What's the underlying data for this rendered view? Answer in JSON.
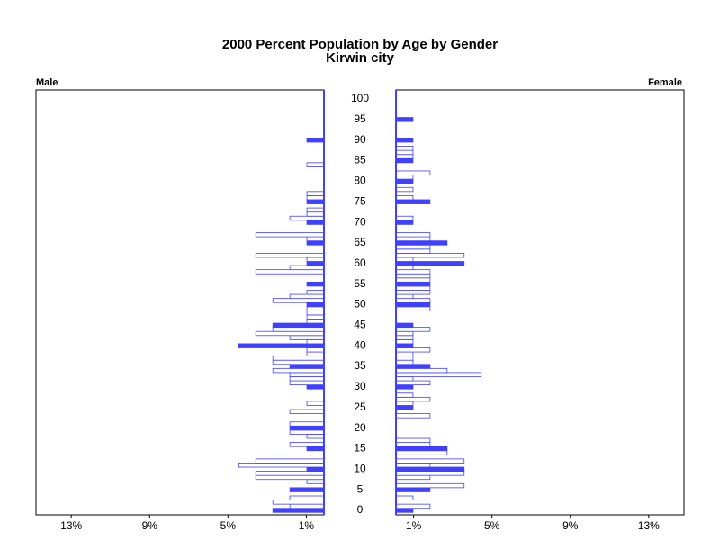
{
  "chart_data": {
    "type": "pyramid",
    "title": "2000 Percent Population by Age by Gender",
    "subtitle": "Kirwin city",
    "ages": [
      0,
      1,
      2,
      3,
      4,
      5,
      6,
      7,
      8,
      9,
      10,
      11,
      12,
      13,
      14,
      15,
      16,
      17,
      18,
      19,
      20,
      21,
      22,
      23,
      24,
      25,
      26,
      27,
      28,
      29,
      30,
      31,
      32,
      33,
      34,
      35,
      36,
      37,
      38,
      39,
      40,
      41,
      42,
      43,
      44,
      45,
      46,
      47,
      48,
      49,
      50,
      51,
      52,
      53,
      54,
      55,
      56,
      57,
      58,
      59,
      60,
      61,
      62,
      63,
      64,
      65,
      66,
      67,
      68,
      69,
      70,
      71,
      72,
      73,
      74,
      75,
      76,
      77,
      78,
      79,
      80,
      81,
      82,
      83,
      84,
      85,
      86,
      87,
      88,
      89,
      90,
      91,
      92,
      93,
      94,
      95,
      96,
      97,
      98,
      99,
      100
    ],
    "ylim": [
      0,
      100
    ],
    "yticks": [
      0,
      5,
      10,
      15,
      20,
      25,
      30,
      35,
      40,
      45,
      50,
      55,
      60,
      65,
      70,
      75,
      80,
      85,
      90,
      95,
      100
    ],
    "xlim": [
      0,
      14.7
    ],
    "xticks": [
      {
        "value": 0.9,
        "label": "1%"
      },
      {
        "value": 4.9,
        "label": "5%"
      },
      {
        "value": 8.9,
        "label": "9%"
      },
      {
        "value": 12.9,
        "label": "13%"
      }
    ],
    "series": [
      {
        "name": "Male",
        "color": "#4040ff",
        "side": "left",
        "values": [
          2.61,
          1.74,
          2.61,
          1.74,
          0,
          1.74,
          0,
          0.87,
          3.48,
          3.48,
          0.87,
          4.35,
          3.48,
          0,
          0,
          0.87,
          1.74,
          0,
          0.87,
          1.74,
          1.74,
          1.74,
          0,
          0,
          1.74,
          0,
          0.87,
          0,
          0,
          0,
          0.87,
          1.74,
          1.74,
          1.74,
          2.61,
          1.74,
          2.61,
          2.61,
          0.87,
          0.87,
          4.35,
          0.87,
          1.74,
          3.48,
          2.61,
          2.61,
          0.87,
          0.87,
          0.87,
          0.87,
          0.87,
          2.61,
          1.74,
          0.87,
          0,
          0.87,
          0,
          0,
          3.48,
          1.74,
          0.87,
          0.87,
          3.48,
          0,
          0,
          0.87,
          0.87,
          3.48,
          0,
          0,
          0.87,
          1.74,
          0.87,
          0.87,
          0,
          0.87,
          0.87,
          0.87,
          0,
          0,
          0,
          0,
          0,
          0,
          0.87,
          0,
          0,
          0,
          0,
          0,
          0.87,
          0,
          0,
          0,
          0,
          0,
          0,
          0,
          0,
          0,
          0
        ]
      },
      {
        "name": "Female",
        "color": "#4040ff",
        "side": "right",
        "values": [
          0.87,
          1.74,
          0,
          0.87,
          0,
          1.74,
          3.48,
          0,
          1.74,
          3.48,
          3.48,
          1.74,
          3.48,
          0,
          2.61,
          2.61,
          1.74,
          1.74,
          0,
          0,
          0,
          0,
          0,
          1.74,
          0,
          0.87,
          0.87,
          1.74,
          0.87,
          0,
          0.87,
          1.74,
          0.87,
          4.35,
          2.61,
          1.74,
          0.87,
          0.87,
          0.87,
          1.74,
          0.87,
          0.87,
          0.87,
          0.87,
          1.74,
          0.87,
          0,
          0,
          0,
          1.74,
          1.74,
          1.74,
          0.87,
          1.74,
          1.74,
          1.74,
          1.74,
          1.74,
          1.74,
          0.87,
          3.48,
          0.87,
          3.48,
          1.74,
          1.74,
          2.61,
          1.74,
          1.74,
          0,
          0,
          0.87,
          0.87,
          0,
          0,
          0,
          1.74,
          0.87,
          0,
          0.87,
          0,
          0.87,
          0.87,
          1.74,
          0,
          0,
          0.87,
          0.87,
          0.87,
          0.87,
          0,
          0.87,
          0,
          0,
          0,
          0,
          0.87,
          0,
          0,
          0,
          0,
          0
        ]
      }
    ]
  }
}
